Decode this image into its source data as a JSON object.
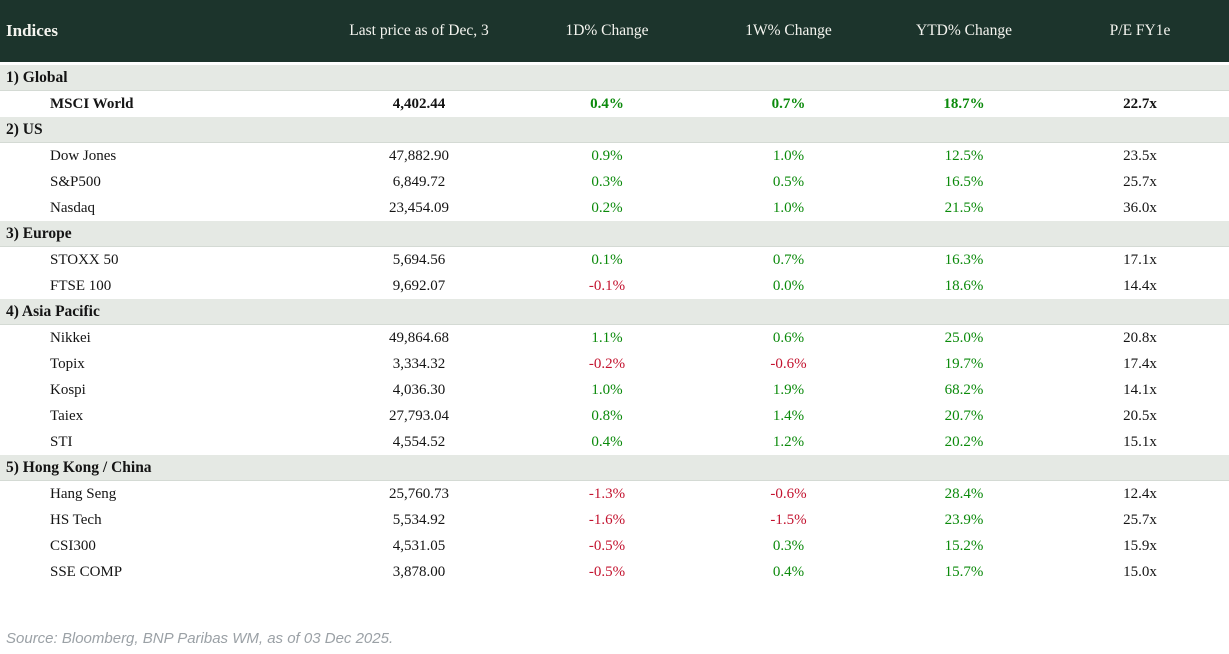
{
  "colors": {
    "header_bg": "#1c342c",
    "header_text": "#f4f4ef",
    "section_bg": "#e5e9e4",
    "positive": "#0b8a0b",
    "negative": "#c3132f",
    "text": "#141414",
    "footer_text": "#9ba1a6"
  },
  "chart_data": {
    "type": "table",
    "title": "Indices",
    "columns": [
      "Indices",
      "Last price as of Dec, 3",
      "1D% Change",
      "1W% Change",
      "YTD% Change",
      "P/E FY1e"
    ],
    "sections": [
      {
        "title": "1) Global",
        "rows": [
          {
            "name": "MSCI World",
            "last_price": "4,402.44",
            "chg_1d": "0.4%",
            "chg_1w": "0.7%",
            "chg_ytd": "18.7%",
            "pe_fy1e": "22.7x",
            "bold": true
          }
        ]
      },
      {
        "title": "2) US",
        "rows": [
          {
            "name": "Dow Jones",
            "last_price": "47,882.90",
            "chg_1d": "0.9%",
            "chg_1w": "1.0%",
            "chg_ytd": "12.5%",
            "pe_fy1e": "23.5x"
          },
          {
            "name": "S&P500",
            "last_price": "6,849.72",
            "chg_1d": "0.3%",
            "chg_1w": "0.5%",
            "chg_ytd": "16.5%",
            "pe_fy1e": "25.7x"
          },
          {
            "name": "Nasdaq",
            "last_price": "23,454.09",
            "chg_1d": "0.2%",
            "chg_1w": "1.0%",
            "chg_ytd": "21.5%",
            "pe_fy1e": "36.0x"
          }
        ]
      },
      {
        "title": "3) Europe",
        "rows": [
          {
            "name": "STOXX 50",
            "last_price": "5,694.56",
            "chg_1d": "0.1%",
            "chg_1w": "0.7%",
            "chg_ytd": "16.3%",
            "pe_fy1e": "17.1x"
          },
          {
            "name": "FTSE 100",
            "last_price": "9,692.07",
            "chg_1d": "-0.1%",
            "chg_1w": "0.0%",
            "chg_ytd": "18.6%",
            "pe_fy1e": "14.4x"
          }
        ]
      },
      {
        "title": "4) Asia Pacific",
        "rows": [
          {
            "name": "Nikkei",
            "last_price": "49,864.68",
            "chg_1d": "1.1%",
            "chg_1w": "0.6%",
            "chg_ytd": "25.0%",
            "pe_fy1e": "20.8x"
          },
          {
            "name": "Topix",
            "last_price": "3,334.32",
            "chg_1d": "-0.2%",
            "chg_1w": "-0.6%",
            "chg_ytd": "19.7%",
            "pe_fy1e": "17.4x"
          },
          {
            "name": "Kospi",
            "last_price": "4,036.30",
            "chg_1d": "1.0%",
            "chg_1w": "1.9%",
            "chg_ytd": "68.2%",
            "pe_fy1e": "14.1x"
          },
          {
            "name": "Taiex",
            "last_price": "27,793.04",
            "chg_1d": "0.8%",
            "chg_1w": "1.4%",
            "chg_ytd": "20.7%",
            "pe_fy1e": "20.5x"
          },
          {
            "name": "STI",
            "last_price": "4,554.52",
            "chg_1d": "0.4%",
            "chg_1w": "1.2%",
            "chg_ytd": "20.2%",
            "pe_fy1e": "15.1x"
          }
        ]
      },
      {
        "title": "5) Hong Kong / China",
        "rows": [
          {
            "name": "Hang Seng",
            "last_price": "25,760.73",
            "chg_1d": "-1.3%",
            "chg_1w": "-0.6%",
            "chg_ytd": "28.4%",
            "pe_fy1e": "12.4x"
          },
          {
            "name": "HS Tech",
            "last_price": "5,534.92",
            "chg_1d": "-1.6%",
            "chg_1w": "-1.5%",
            "chg_ytd": "23.9%",
            "pe_fy1e": "25.7x"
          },
          {
            "name": "CSI300",
            "last_price": "4,531.05",
            "chg_1d": "-0.5%",
            "chg_1w": "0.3%",
            "chg_ytd": "15.2%",
            "pe_fy1e": "15.9x"
          },
          {
            "name": "SSE COMP",
            "last_price": "3,878.00",
            "chg_1d": "-0.5%",
            "chg_1w": "0.4%",
            "chg_ytd": "15.7%",
            "pe_fy1e": "15.0x"
          }
        ]
      }
    ]
  },
  "footer": {
    "source_note": "Source: Bloomberg, BNP Paribas WM, as of 03 Dec 2025."
  }
}
